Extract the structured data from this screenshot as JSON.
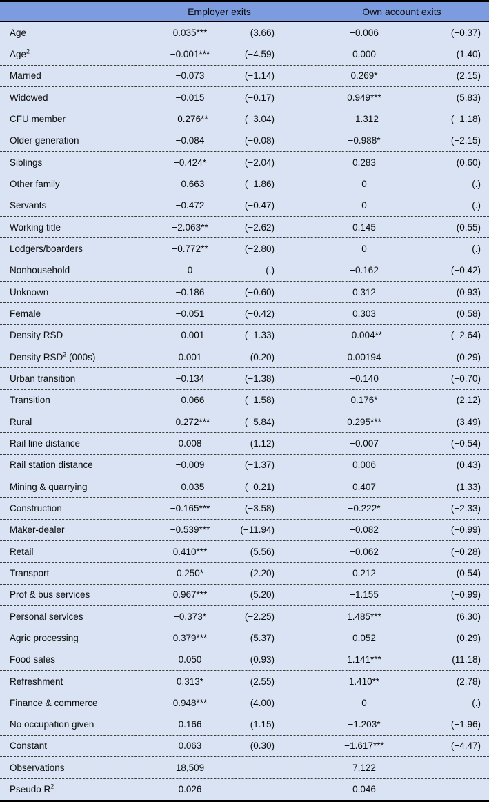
{
  "colors": {
    "page_background": "#d9e3f3",
    "header_band": "#7d9ce0",
    "rule": "#000000",
    "row_divider": "#3c3c3c",
    "text": "#0a0a0a"
  },
  "table": {
    "group_headers": [
      "Employer exits",
      "Own account exits"
    ],
    "columns": [
      "variable",
      "employer_coef",
      "employer_tstat",
      "own_account_coef",
      "own_account_tstat"
    ],
    "rows": [
      {
        "label": "Age",
        "cols": [
          "0.035***",
          "(3.66)",
          "−0.006",
          "(−0.37)"
        ]
      },
      {
        "label": "Age",
        "sup": "2",
        "cols": [
          "−0.001***",
          "(−4.59)",
          "0.000",
          "(1.40)"
        ]
      },
      {
        "label": "Married",
        "cols": [
          "−0.073",
          "(−1.14)",
          "0.269*",
          "(2.15)"
        ]
      },
      {
        "label": "Widowed",
        "cols": [
          "−0.015",
          "(−0.17)",
          "0.949***",
          "(5.83)"
        ]
      },
      {
        "label": "CFU member",
        "cols": [
          "−0.276**",
          "(−3.04)",
          "−1.312",
          "(−1.18)"
        ]
      },
      {
        "label": "Older generation",
        "cols": [
          "−0.084",
          "(−0.08)",
          "−0.988*",
          "(−2.15)"
        ]
      },
      {
        "label": "Siblings",
        "cols": [
          "−0.424*",
          "(−2.04)",
          "0.283",
          "(0.60)"
        ]
      },
      {
        "label": "Other family",
        "cols": [
          "−0.663",
          "(−1.86)",
          "0",
          "(.)"
        ]
      },
      {
        "label": "Servants",
        "cols": [
          "−0.472",
          "(−0.47)",
          "0",
          "(.)"
        ]
      },
      {
        "label": "Working title",
        "cols": [
          "−2.063**",
          "(−2.62)",
          "0.145",
          "(0.55)"
        ]
      },
      {
        "label": "Lodgers/boarders",
        "cols": [
          "−0.772**",
          "(−2.80)",
          "0",
          "(.)"
        ]
      },
      {
        "label": "Nonhousehold",
        "cols": [
          "0",
          "(.)",
          "−0.162",
          "(−0.42)"
        ]
      },
      {
        "label": "Unknown",
        "cols": [
          "−0.186",
          "(−0.60)",
          "0.312",
          "(0.93)"
        ]
      },
      {
        "label": "Female",
        "cols": [
          "−0.051",
          "(−0.42)",
          "0.303",
          "(0.58)"
        ]
      },
      {
        "label": "Density RSD",
        "cols": [
          "−0.001",
          "(−1.33)",
          "−0.004**",
          "(−2.64)"
        ]
      },
      {
        "label": "Density RSD",
        "sup": "2",
        "suffix": " (000s)",
        "cols": [
          "0.001",
          "(0.20)",
          "0.00194",
          "(0.29)"
        ]
      },
      {
        "label": "Urban transition",
        "cols": [
          "−0.134",
          "(−1.38)",
          "−0.140",
          "(−0.70)"
        ]
      },
      {
        "label": "Transition",
        "cols": [
          "−0.066",
          "(−1.58)",
          "0.176*",
          "(2.12)"
        ]
      },
      {
        "label": "Rural",
        "cols": [
          "−0.272***",
          "(−5.84)",
          "0.295***",
          "(3.49)"
        ]
      },
      {
        "label": "Rail line distance",
        "cols": [
          "0.008",
          "(1.12)",
          "−0.007",
          "(−0.54)"
        ]
      },
      {
        "label": "Rail station distance",
        "cols": [
          "−0.009",
          "(−1.37)",
          "0.006",
          "(0.43)"
        ]
      },
      {
        "label": "Mining & quarrying",
        "cols": [
          "−0.035",
          "(−0.21)",
          "0.407",
          "(1.33)"
        ]
      },
      {
        "label": "Construction",
        "cols": [
          "−0.165***",
          "(−3.58)",
          "−0.222*",
          "(−2.33)"
        ]
      },
      {
        "label": "Maker-dealer",
        "cols": [
          "−0.539***",
          "(−11.94)",
          "−0.082",
          "(−0.99)"
        ]
      },
      {
        "label": "Retail",
        "cols": [
          "0.410***",
          "(5.56)",
          "−0.062",
          "(−0.28)"
        ]
      },
      {
        "label": "Transport",
        "cols": [
          "0.250*",
          "(2.20)",
          "0.212",
          "(0.54)"
        ]
      },
      {
        "label": "Prof & bus services",
        "cols": [
          "0.967***",
          "(5.20)",
          "−1.155",
          "(−0.99)"
        ]
      },
      {
        "label": "Personal services",
        "cols": [
          "−0.373*",
          "(−2.25)",
          "1.485***",
          "(6.30)"
        ]
      },
      {
        "label": "Agric processing",
        "cols": [
          "0.379***",
          "(5.37)",
          "0.052",
          "(0.29)"
        ]
      },
      {
        "label": "Food sales",
        "cols": [
          "0.050",
          "(0.93)",
          "1.141***",
          "(11.18)"
        ]
      },
      {
        "label": "Refreshment",
        "cols": [
          "0.313*",
          "(2.55)",
          "1.410**",
          "(2.78)"
        ]
      },
      {
        "label": "Finance & commerce",
        "cols": [
          "0.948***",
          "(4.00)",
          "0",
          "(.)"
        ]
      },
      {
        "label": "No occupation given",
        "cols": [
          "0.166",
          "(1.15)",
          "−1.203*",
          "(−1.96)"
        ]
      },
      {
        "label": "Constant",
        "cols": [
          "0.063",
          "(0.30)",
          "−1.617***",
          "(−4.47)"
        ]
      },
      {
        "label": "Observations",
        "cols": [
          "18,509",
          "",
          "7,122",
          ""
        ]
      },
      {
        "label": "Pseudo R",
        "sup": "2",
        "cols": [
          "0.026",
          "",
          "0.046",
          ""
        ]
      }
    ]
  }
}
